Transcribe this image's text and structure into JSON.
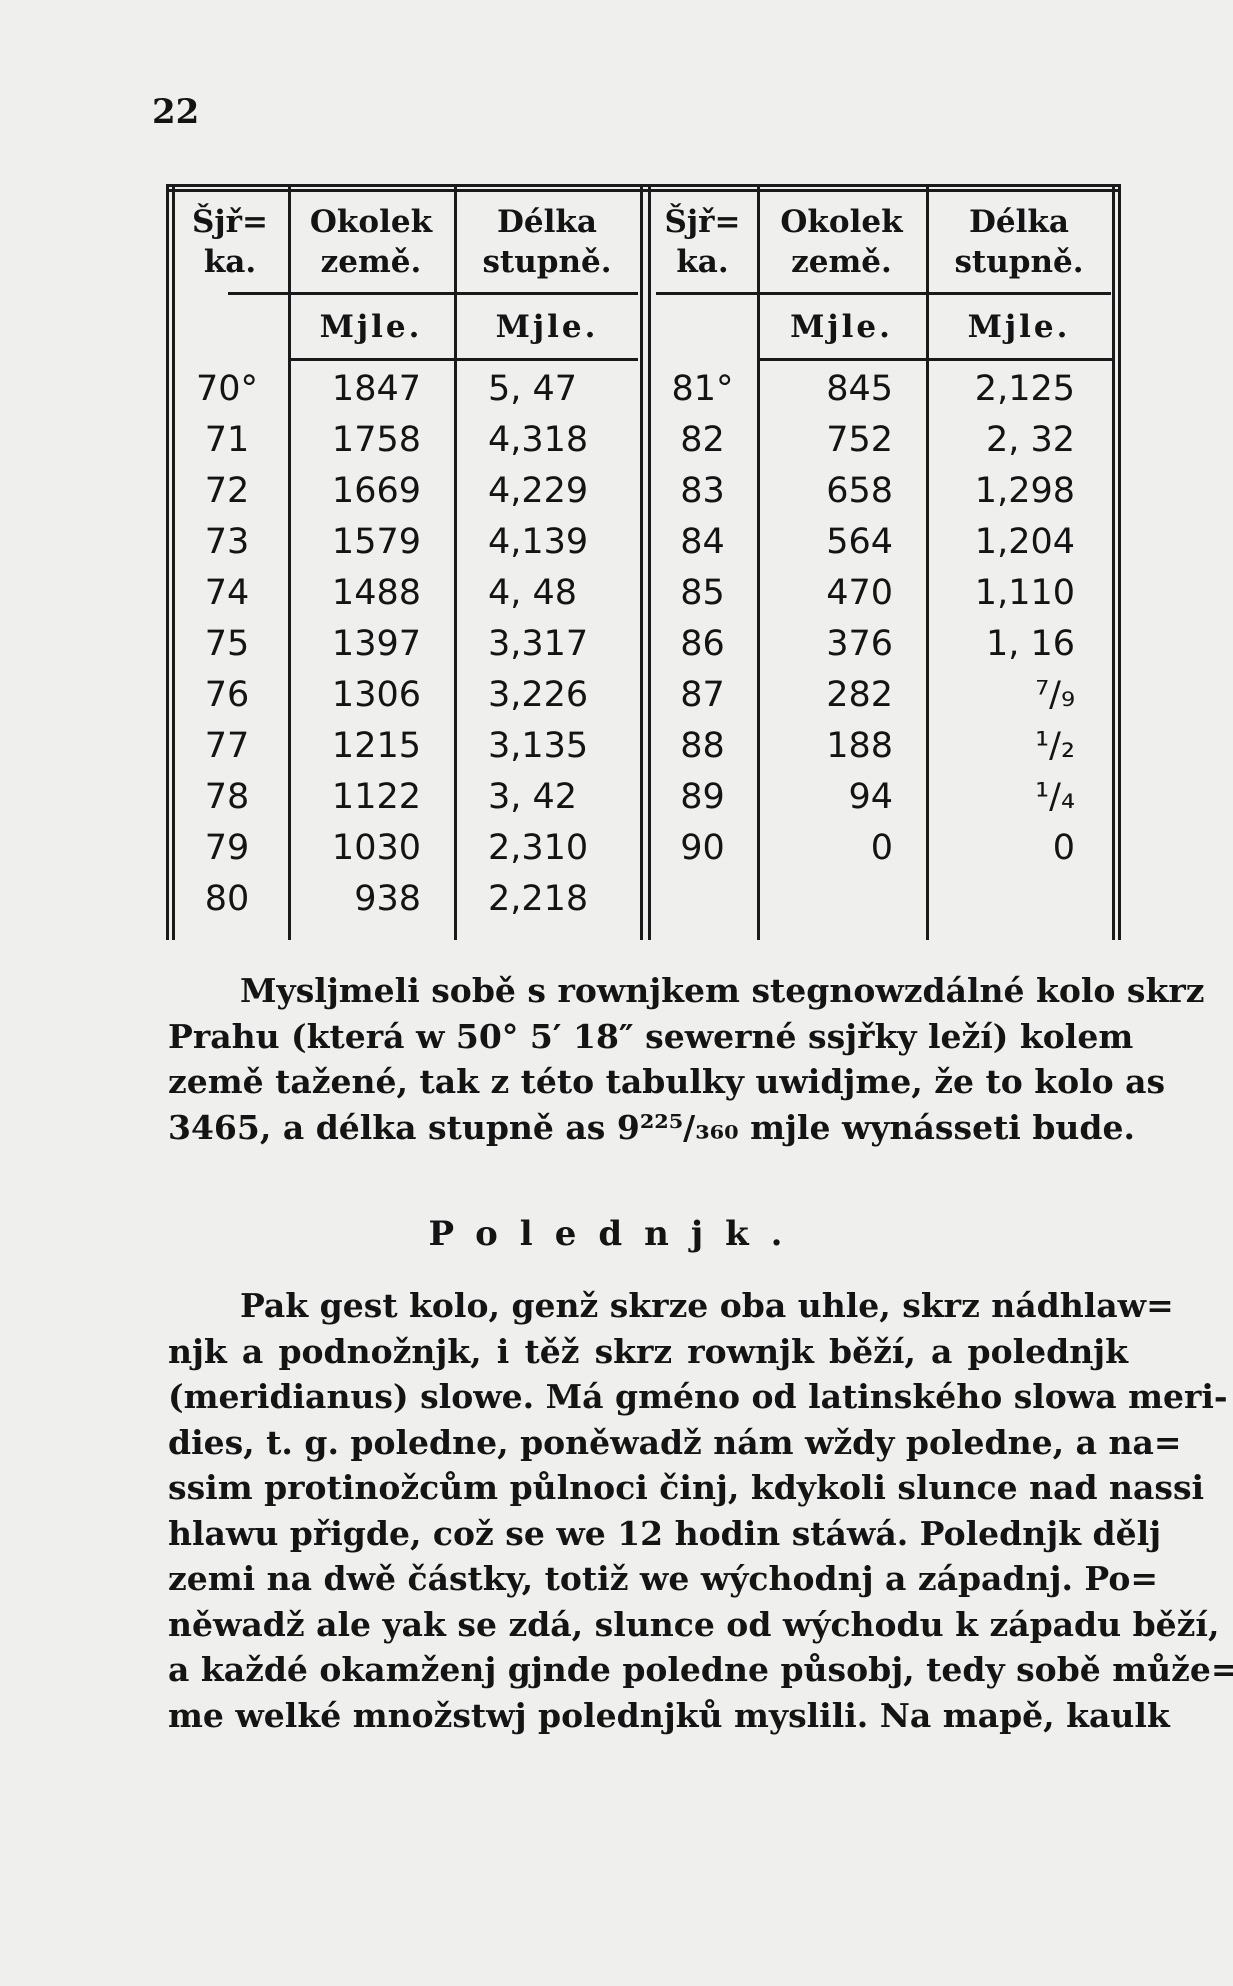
{
  "page_number": "22",
  "table": {
    "headers": [
      {
        "top": "Šjř=",
        "bottom": "ka."
      },
      {
        "top": "Okolek",
        "bottom": "země."
      },
      {
        "top": "Délka",
        "bottom": "stupně."
      },
      {
        "top": "Šjř=",
        "bottom": "ka."
      },
      {
        "top": "Okolek",
        "bottom": "země."
      },
      {
        "top": "Délka",
        "bottom": "stupně."
      }
    ],
    "unit_label": "Mjle.",
    "left_rows": [
      [
        "70°",
        "1847",
        "5, 47"
      ],
      [
        "71",
        "1758",
        "4,318"
      ],
      [
        "72",
        "1669",
        "4,229"
      ],
      [
        "73",
        "1579",
        "4,139"
      ],
      [
        "74",
        "1488",
        "4, 48"
      ],
      [
        "75",
        "1397",
        "3,317"
      ],
      [
        "76",
        "1306",
        "3,226"
      ],
      [
        "77",
        "1215",
        "3,135"
      ],
      [
        "78",
        "1122",
        "3, 42"
      ],
      [
        "79",
        "1030",
        "2,310"
      ],
      [
        "80",
        "938",
        "2,218"
      ]
    ],
    "right_rows": [
      [
        "81°",
        "845",
        "2,125"
      ],
      [
        "82",
        "752",
        "2, 32"
      ],
      [
        "83",
        "658",
        "1,298"
      ],
      [
        "84",
        "564",
        "1,204"
      ],
      [
        "85",
        "470",
        "1,110"
      ],
      [
        "86",
        "376",
        "1, 16"
      ],
      [
        "87",
        "282",
        "⁷/₉"
      ],
      [
        "88",
        "188",
        "¹/₂"
      ],
      [
        "89",
        "94",
        "¹/₄"
      ],
      [
        "90",
        "0",
        "0"
      ]
    ]
  },
  "paragraph1": [
    "Mysljmeli sobě s rownjkem stegnowzdálné kolo skrz",
    "Prahu (která w 50° 5′ 18″ sewerné ssjřky leží) kolem",
    "země tažené, tak z této tabulky uwidjme, že to kolo as",
    "3465, a délka stupně as 9²²⁵/₃₆₀ mjle wynásseti bude."
  ],
  "section_heading": "Polednjk.",
  "paragraph2": [
    "Pak gest kolo, genž skrze oba uhle, skrz nádhlaw=",
    "njk a podnožnjk, i těž skrz rownjk běží, a polednjk",
    "(meridianus) slowe. Má gméno od latinského slowa meri-",
    "dies, t. g. poledne, poněwadž nám wždy poledne, a na=",
    "ssim protinožcům půlnoci činj, kdykoli slunce nad nassi",
    "hlawu přigde, což se we 12 hodin stáwá. Polednjk dělj",
    "zemi na dwě částky, totiž we wýchodnj a západnj. Po=",
    "něwadž ale yak se zdá, slunce od wýchodu k západu běží,",
    "a každé okamženj gjnde poledne působj, tedy sobě může=",
    "me welké množstwj polednjků myslili. Na mapě, kaulk"
  ]
}
